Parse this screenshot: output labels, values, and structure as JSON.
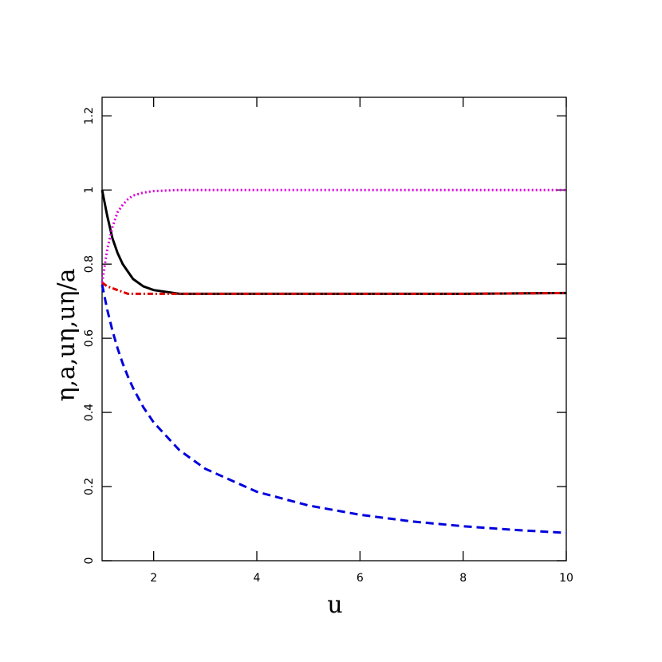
{
  "chart_data": {
    "type": "line",
    "xlabel": "u",
    "ylabel": "η,a,uη,uη/a",
    "x": [
      1,
      1.1,
      1.2,
      1.3,
      1.4,
      1.5,
      1.6,
      1.8,
      2,
      2.5,
      3,
      4,
      5,
      6,
      7,
      8,
      9,
      10
    ],
    "series": [
      {
        "color": "#0000dd",
        "dash": "10,6",
        "values": [
          0.745,
          0.677,
          0.621,
          0.573,
          0.532,
          0.497,
          0.466,
          0.414,
          0.373,
          0.298,
          0.248,
          0.186,
          0.149,
          0.124,
          0.106,
          0.093,
          0.083,
          0.075
        ]
      },
      {
        "color": "#000000",
        "dash": "none",
        "values": [
          1,
          0.93,
          0.87,
          0.83,
          0.8,
          0.78,
          0.76,
          0.74,
          0.73,
          0.72,
          0.72,
          0.72,
          0.72,
          0.72,
          0.72,
          0.72,
          0.721,
          0.722
        ]
      },
      {
        "color": "#dd0000",
        "dash": "7,3,2,3",
        "values": [
          0.75,
          0.74,
          0.735,
          0.73,
          0.725,
          0.72,
          0.72,
          0.72,
          0.72,
          0.72,
          0.72,
          0.72,
          0.72,
          0.72,
          0.72,
          0.72,
          0.721,
          0.722
        ]
      },
      {
        "color": "#dd00dd",
        "dash": "2,3",
        "values": [
          0.75,
          0.84,
          0.9,
          0.94,
          0.96,
          0.975,
          0.985,
          0.993,
          0.997,
          1,
          1,
          1,
          1,
          1,
          1,
          1,
          1,
          1
        ]
      }
    ],
    "xlim": [
      1,
      10
    ],
    "xticks": [
      2,
      4,
      6,
      8,
      10
    ],
    "ylim": [
      0,
      1.25
    ],
    "yticks": [
      0,
      0.2,
      0.4,
      0.6,
      0.8,
      1,
      1.2
    ],
    "grid": false
  }
}
